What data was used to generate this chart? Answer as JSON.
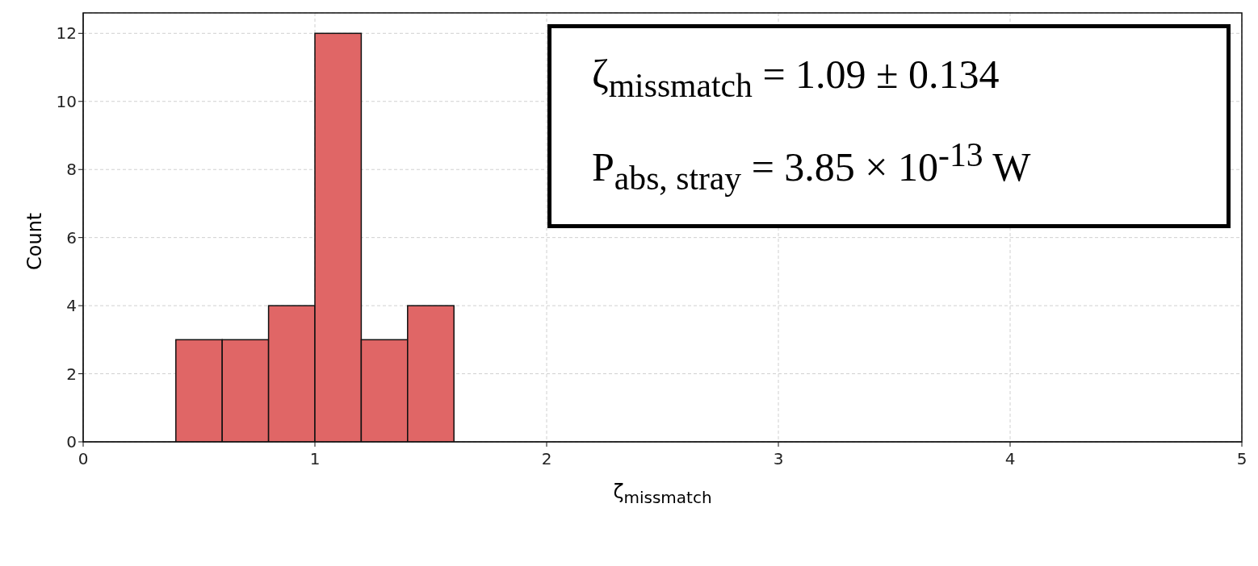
{
  "chart_data": {
    "type": "histogram",
    "xlabel": "ζ$_{missmatch}$",
    "ylabel": "Count",
    "bins": [
      0.4,
      0.6,
      0.8,
      1.0,
      1.2,
      1.4,
      1.6
    ],
    "values": [
      3,
      3,
      4,
      12,
      3,
      4
    ],
    "color": "#e06666",
    "xlim": [
      0,
      5
    ],
    "xticks": [
      0,
      1,
      2,
      3,
      4,
      5
    ],
    "ylim": [
      0,
      12.6
    ],
    "yticks": [
      0,
      2,
      4,
      6,
      8,
      10,
      12
    ],
    "grid": true,
    "annotations": [
      "ζ$_{missmatch}$ =  1.09 ± 0.134",
      "P$_{abs, stray}$  =  3.85 × 10$^{-13}$ W"
    ]
  }
}
